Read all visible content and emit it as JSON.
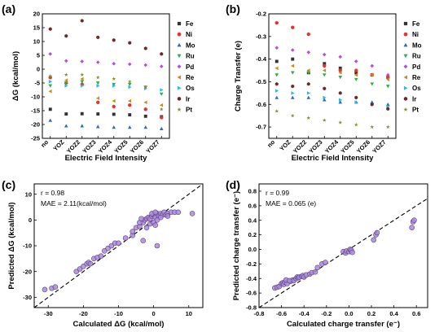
{
  "chart_data": [
    {
      "panel": "(a)",
      "type": "scatter",
      "xlabel": "Electric Field Intensity",
      "ylabel": "ΔG (kcal/mol)",
      "categories": [
        "no",
        "YOZ",
        "YOZ2",
        "YOZ3",
        "YOZ4",
        "YOZ5",
        "YOZ6",
        "YOZ7"
      ],
      "ylim": [
        -25,
        20
      ],
      "yticks": [
        -25,
        -20,
        -15,
        -10,
        -5,
        0,
        5,
        10,
        15,
        20
      ],
      "legend_position": "right",
      "series": [
        {
          "name": "Fe",
          "marker": "square",
          "color": "#333333",
          "values": [
            -14.5,
            -16.2,
            -16.1,
            -16.2,
            -16.3,
            -16.5,
            -17.0,
            -17.2
          ]
        },
        {
          "name": "Ni",
          "marker": "circle",
          "color": "#e8322b",
          "values": [
            -3.0,
            -5.0,
            -5.5,
            -12.0,
            -13.5,
            -13.0,
            -14.5,
            -17.5
          ]
        },
        {
          "name": "Mo",
          "marker": "triangle-up",
          "color": "#2a6db5",
          "values": [
            -18.5,
            -20.5,
            -20.5,
            -20.8,
            -21.0,
            -21.0,
            -21.0,
            -21.5
          ]
        },
        {
          "name": "Ru",
          "marker": "triangle-down",
          "color": "#2bae4a",
          "values": [
            -6.0,
            -5.0,
            -4.5,
            -5.0,
            -5.5,
            -5.5,
            -6.5,
            -9.0
          ]
        },
        {
          "name": "Pd",
          "marker": "diamond",
          "color": "#b64fd6",
          "values": [
            5.5,
            3.0,
            2.8,
            2.5,
            2.0,
            1.8,
            1.5,
            1.0
          ]
        },
        {
          "name": "Re",
          "marker": "triangle-left",
          "color": "#c98c1a",
          "values": [
            -8.0,
            -4.0,
            -3.5,
            -10.5,
            -11.5,
            -11.5,
            -12.0,
            -13.0
          ]
        },
        {
          "name": "Os",
          "marker": "triangle-right",
          "color": "#2bb9d9",
          "values": [
            -4.5,
            -6.0,
            -6.0,
            -6.0,
            -6.0,
            -6.5,
            -7.0,
            -7.5
          ]
        },
        {
          "name": "Ir",
          "marker": "hexagon",
          "color": "#6b2a2a",
          "values": [
            14.5,
            12.0,
            17.5,
            11.5,
            10.5,
            9.5,
            7.5,
            5.5
          ]
        },
        {
          "name": "Pt",
          "marker": "star",
          "color": "#8c8c2e",
          "values": [
            -2.5,
            -2.0,
            -2.0,
            -3.0,
            -3.5,
            -4.5,
            -6.5,
            -14.5
          ]
        }
      ]
    },
    {
      "panel": "(b)",
      "type": "scatter",
      "xlabel": "Electric Field Intensity",
      "ylabel": "Charge Transfer (e)",
      "categories": [
        "no",
        "YOZ",
        "YOZ2",
        "YOZ3",
        "YOZ4",
        "YOZ5",
        "YOZ6",
        "YOZ7"
      ],
      "ylim": [
        -0.75,
        -0.2
      ],
      "yticks": [
        -0.7,
        -0.6,
        -0.5,
        -0.4,
        -0.3,
        -0.2
      ],
      "legend_position": "right",
      "series": [
        {
          "name": "Fe",
          "marker": "square",
          "color": "#333333",
          "values": [
            -0.41,
            -0.4,
            -0.46,
            -0.42,
            -0.44,
            -0.46,
            -0.47,
            -0.48
          ]
        },
        {
          "name": "Ni",
          "marker": "circle",
          "color": "#e8322b",
          "values": [
            -0.24,
            -0.26,
            -0.29,
            -0.43,
            -0.45,
            -0.45,
            -0.47,
            -0.48
          ]
        },
        {
          "name": "Mo",
          "marker": "triangle-up",
          "color": "#2a6db5",
          "values": [
            -0.57,
            -0.57,
            -0.57,
            -0.58,
            -0.59,
            -0.59,
            -0.59,
            -0.6
          ]
        },
        {
          "name": "Ru",
          "marker": "triangle-down",
          "color": "#2bae4a",
          "values": [
            -0.47,
            -0.46,
            -0.46,
            -0.47,
            -0.48,
            -0.49,
            -0.51,
            -0.52
          ]
        },
        {
          "name": "Pd",
          "marker": "diamond",
          "color": "#b64fd6",
          "values": [
            -0.35,
            -0.36,
            -0.37,
            -0.38,
            -0.39,
            -0.41,
            -0.43,
            -0.47
          ]
        },
        {
          "name": "Re",
          "marker": "triangle-left",
          "color": "#c98c1a",
          "values": [
            -0.44,
            -0.43,
            -0.45,
            -0.45,
            -0.46,
            -0.47,
            -0.47,
            -0.49
          ]
        },
        {
          "name": "Os",
          "marker": "triangle-right",
          "color": "#2bb9d9",
          "values": [
            -0.54,
            -0.55,
            -0.55,
            -0.57,
            -0.58,
            -0.59,
            -0.6,
            -0.61
          ]
        },
        {
          "name": "Ir",
          "marker": "hexagon",
          "color": "#6b2a2a",
          "values": [
            -0.51,
            -0.52,
            -0.51,
            -0.53,
            -0.55,
            -0.57,
            -0.6,
            -0.62
          ]
        },
        {
          "name": "Pt",
          "marker": "star",
          "color": "#8c8c2e",
          "values": [
            -0.63,
            -0.65,
            -0.66,
            -0.67,
            -0.68,
            -0.69,
            -0.7,
            -0.7
          ]
        }
      ]
    },
    {
      "panel": "(c)",
      "type": "scatter",
      "xlabel": "Calculated ΔG (kcal/mol)",
      "ylabel": "Predicted ΔG (kcal/mol)",
      "xlim": [
        -34,
        14
      ],
      "ylim": [
        -34,
        14
      ],
      "xticks": [
        -30,
        -20,
        -10,
        0,
        10
      ],
      "yticks": [
        -30,
        -20,
        -10,
        0,
        10
      ],
      "annotations": [
        "r = 0.98",
        "MAE = 2.11(kcal/mol)"
      ],
      "diagonal": true,
      "point_color": "#a98bd4",
      "points": [
        [
          -31,
          -27
        ],
        [
          -29,
          -26.5
        ],
        [
          -28,
          -26
        ],
        [
          -22,
          -20
        ],
        [
          -21,
          -19
        ],
        [
          -20,
          -18
        ],
        [
          -19,
          -17
        ],
        [
          -18.5,
          -16.5
        ],
        [
          -18,
          -17
        ],
        [
          -17,
          -15
        ],
        [
          -16,
          -14.5
        ],
        [
          -15,
          -14
        ],
        [
          -14,
          -12
        ],
        [
          -13,
          -11
        ],
        [
          -12,
          -10
        ],
        [
          -11,
          -9
        ],
        [
          -10,
          -9
        ],
        [
          -8,
          -7
        ],
        [
          -6,
          -6
        ],
        [
          -5,
          -3
        ],
        [
          -4,
          -2.5
        ],
        [
          -3,
          -1
        ],
        [
          -2.5,
          0
        ],
        [
          -2,
          0.5
        ],
        [
          -1.5,
          1
        ],
        [
          -1,
          0.5
        ],
        [
          -0.5,
          1.5
        ],
        [
          0,
          2
        ],
        [
          0.5,
          1
        ],
        [
          1,
          2.5
        ],
        [
          1.5,
          1.5
        ],
        [
          2,
          2.5
        ],
        [
          2.5,
          2
        ],
        [
          3,
          3
        ],
        [
          3.5,
          2
        ],
        [
          4,
          2.5
        ],
        [
          5,
          3
        ],
        [
          6,
          3
        ],
        [
          7,
          3
        ],
        [
          -4,
          -1
        ],
        [
          -3.5,
          0.5
        ],
        [
          -1,
          -1.5
        ],
        [
          0,
          -1
        ],
        [
          1,
          0
        ],
        [
          2,
          1
        ],
        [
          -2,
          -3
        ],
        [
          -6,
          -4.5
        ],
        [
          0.5,
          -2
        ],
        [
          -3,
          -8
        ],
        [
          1,
          -10
        ],
        [
          11,
          2.5
        ],
        [
          4,
          1.5
        ],
        [
          -0.5,
          2.5
        ],
        [
          0.5,
          3
        ]
      ]
    },
    {
      "panel": "(d)",
      "type": "scatter",
      "xlabel": "Calculated charge transfer (e⁻)",
      "ylabel": "Predicted charge transfer (e⁻)",
      "xlim": [
        -0.8,
        0.7
      ],
      "ylim": [
        -0.8,
        0.9
      ],
      "xticks": [
        -0.8,
        -0.6,
        -0.4,
        -0.2,
        0.0,
        0.2,
        0.4,
        0.6
      ],
      "yticks": [
        -0.8,
        -0.6,
        -0.4,
        -0.2,
        0.0,
        0.2,
        0.4,
        0.6,
        0.8
      ],
      "annotations": [
        "r = 0.99",
        "MAE = 0.065 (e)"
      ],
      "diagonal": true,
      "point_color": "#a98bd4",
      "points": [
        [
          -0.66,
          -0.53
        ],
        [
          -0.64,
          -0.52
        ],
        [
          -0.62,
          -0.51
        ],
        [
          -0.6,
          -0.47
        ],
        [
          -0.59,
          -0.46
        ],
        [
          -0.58,
          -0.48
        ],
        [
          -0.57,
          -0.45
        ],
        [
          -0.55,
          -0.47
        ],
        [
          -0.52,
          -0.44
        ],
        [
          -0.5,
          -0.42
        ],
        [
          -0.49,
          -0.43
        ],
        [
          -0.47,
          -0.4
        ],
        [
          -0.46,
          -0.38
        ],
        [
          -0.45,
          -0.39
        ],
        [
          -0.44,
          -0.38
        ],
        [
          -0.42,
          -0.37
        ],
        [
          -0.41,
          -0.36
        ],
        [
          -0.4,
          -0.38
        ],
        [
          -0.38,
          -0.35
        ],
        [
          -0.35,
          -0.34
        ],
        [
          -0.33,
          -0.32
        ],
        [
          -0.3,
          -0.31
        ],
        [
          -0.28,
          -0.25
        ],
        [
          -0.24,
          -0.2
        ],
        [
          -0.21,
          -0.18
        ],
        [
          -0.05,
          -0.03
        ],
        [
          -0.03,
          -0.05
        ],
        [
          -0.02,
          -0.02
        ],
        [
          0.0,
          -0.03
        ],
        [
          0.01,
          0.0
        ],
        [
          0.02,
          -0.01
        ],
        [
          0.03,
          -0.04
        ],
        [
          0.22,
          0.13
        ],
        [
          0.24,
          0.2
        ],
        [
          0.25,
          0.23
        ],
        [
          0.56,
          0.3
        ],
        [
          0.57,
          0.38
        ],
        [
          0.58,
          0.4
        ],
        [
          -0.56,
          -0.42
        ],
        [
          -0.53,
          -0.43
        ]
      ]
    }
  ]
}
